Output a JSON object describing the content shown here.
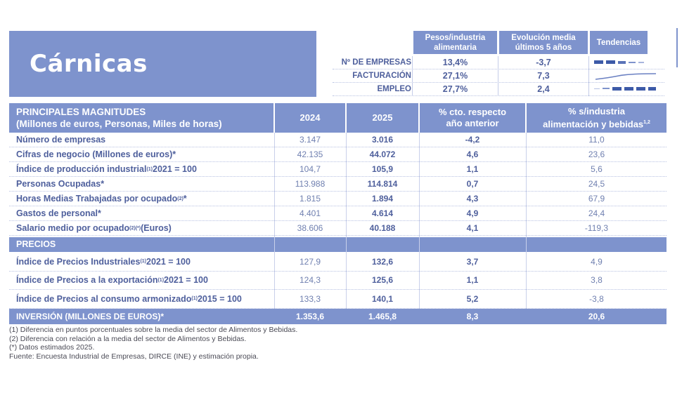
{
  "title": "Cárnicas",
  "summary": {
    "headers": [
      "Pesos/industria alimentaria",
      "Evolución media últimos 5 años",
      "Tendencias"
    ],
    "rows": [
      {
        "label": "Nº DE EMPRESAS",
        "peso": "13,4%",
        "evolucion": "-3,7",
        "trend": "decreasing-bars"
      },
      {
        "label": "FACTURACIÓN",
        "peso": "27,1%",
        "evolucion": "7,3",
        "trend": "rising-line"
      },
      {
        "label": "EMPLEO",
        "peso": "27,7%",
        "evolucion": "2,4",
        "trend": "increasing-bars"
      }
    ]
  },
  "main": {
    "header": {
      "title_line1": "PRINCIPALES MAGNITUDES",
      "title_line2": "(Millones de euros, Personas, Miles de horas)",
      "col1": "2024",
      "col2": "2025",
      "col3_line1": "% cto. respecto",
      "col3_line2": "año anterior",
      "col4_line1": "% s/industria",
      "col4_line2": "alimentación y bebidas",
      "col4_sup": "1,2"
    },
    "rows": [
      {
        "label": "Número de empresas",
        "sup": "",
        "suffix": "",
        "v2024": "3.147",
        "v2025": "3.016",
        "cto": "-4,2",
        "pct": "11,0"
      },
      {
        "label": "Cifras de negocio (Millones de euros)*",
        "sup": "",
        "suffix": "",
        "v2024": "42.135",
        "v2025": "44.072",
        "cto": "4,6",
        "pct": "23,6"
      },
      {
        "label": "Índice de producción industrial",
        "sup": "(1)",
        "suffix": " 2021 = 100",
        "v2024": "104,7",
        "v2025": "105,9",
        "cto": "1,1",
        "pct": "5,6"
      },
      {
        "label": "Personas Ocupadas*",
        "sup": "",
        "suffix": "",
        "v2024": "113.988",
        "v2025": "114.814",
        "cto": "0,7",
        "pct": "24,5"
      },
      {
        "label": "Horas Medias Trabajadas por ocupado",
        "sup": "(2)",
        "suffix": "*",
        "v2024": "1.815",
        "v2025": "1.894",
        "cto": "4,3",
        "pct": "67,9"
      },
      {
        "label": "Gastos de personal*",
        "sup": "",
        "suffix": "",
        "v2024": "4.401",
        "v2025": "4.614",
        "cto": "4,9",
        "pct": "24,4"
      },
      {
        "label": "Salario medio por ocupado",
        "sup": "(2)(*)",
        "suffix": " (Euros)",
        "v2024": "38.606",
        "v2025": "40.188",
        "cto": "4,1",
        "pct": "-119,3"
      }
    ],
    "section_prices": "PRECIOS",
    "price_rows": [
      {
        "label": "Índice de Precios Industriales",
        "sup": "(1)",
        "suffix": " 2021 = 100",
        "v2024": "127,9",
        "v2025": "132,6",
        "cto": "3,7",
        "pct": "4,9"
      },
      {
        "label": "Índice de Precios a la exportación",
        "sup": "(1)",
        "suffix": " 2021 = 100",
        "v2024": "124,3",
        "v2025": "125,6",
        "cto": "1,1",
        "pct": "3,8"
      },
      {
        "label": "Índice de Precios al consumo armonizado",
        "sup": "(1)",
        "suffix": " 2015 = 100",
        "v2024": "133,3",
        "v2025": "140,1",
        "cto": "5,2",
        "pct": "-3,8"
      }
    ],
    "total": {
      "label": "INVERSIÓN (MILLONES DE EUROS)*",
      "v2024": "1.353,6",
      "v2025": "1.465,8",
      "cto": "8,3",
      "pct": "20,6"
    }
  },
  "notes": [
    "(1) Diferencia en puntos porcentuales sobre la media del sector de Alimentos y Bebidas.",
    "(2) Diferencia con relación a la media del sector de Alimentos y Bebidas.",
    "(*) Datos estimados 2025.",
    "Fuente: Encuesta Industrial de Empresas, DIRCE (INE) y estimación propia."
  ],
  "colors": {
    "accent": "#7e93cd",
    "trend_dark": "#3d5aa8",
    "trend_light": "#b5c1e3"
  }
}
